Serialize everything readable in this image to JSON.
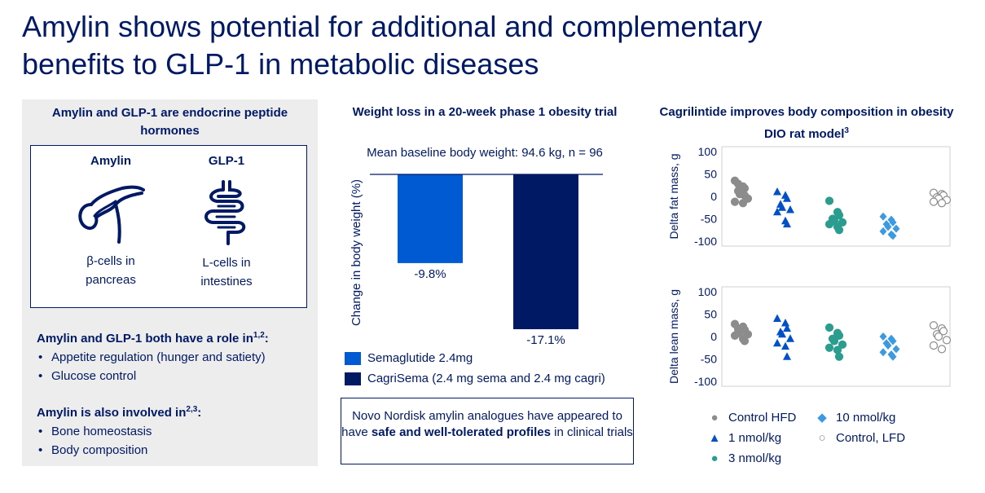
{
  "title": {
    "line1": "Amylin shows potential for additional and complementary",
    "line2": "benefits to GLP-1 in metabolic diseases"
  },
  "left": {
    "heading": "Amylin and GLP-1 are endocrine peptide hormones",
    "amylin": {
      "name": "Amylin",
      "cells1": "β-cells in",
      "cells2": "pancreas",
      "icon": "pancreas-icon"
    },
    "glp1": {
      "name": "GLP-1",
      "cells1": "L-cells in",
      "cells2": "intestines",
      "icon": "intestines-icon"
    },
    "roles_heading": "Amylin and GLP-1 both have a role in",
    "roles_sup": "1,2",
    "roles_colon": ":",
    "roles": [
      "Appetite regulation (hunger and satiety)",
      "Glucose control"
    ],
    "also_heading": "Amylin is also involved in",
    "also_sup": "2,3",
    "also_colon": ":",
    "also": [
      "Bone homeostasis",
      "Body composition"
    ]
  },
  "middle": {
    "heading": "Weight loss in a 20-week phase 1 obesity trial",
    "subtitle": "Mean baseline body weight: 94.6 kg, n = 96",
    "legend": [
      {
        "label": "Semaglutide 2.4mg",
        "color": "#005ad2"
      },
      {
        "label": "CagriSema (2.4 mg sema and 2.4 mg cagri)",
        "color": "#001965"
      }
    ],
    "callout": {
      "pre": "Novo Nordisk amylin analogues have appeared to have ",
      "bold": "safe and well-tolerated profiles",
      "post": " in clinical trials"
    }
  },
  "right": {
    "heading": "Cagrilintide improves body composition in obesity DIO rat model",
    "heading_sup": "3",
    "legend": [
      {
        "label": "Control HFD",
        "marker": "●",
        "color": "#8c8c8c"
      },
      {
        "label": "10 nmol/kg",
        "marker": "◆",
        "color": "#3b9ae1"
      },
      {
        "label": "1 nmol/kg",
        "marker": "▲",
        "color": "#0050c8"
      },
      {
        "label": "Control, LFD",
        "marker": "○",
        "color": "#8c8c8c"
      },
      {
        "label": "3 nmol/kg",
        "marker": "●",
        "color": "#2a9d8f"
      }
    ]
  },
  "chart_data": [
    {
      "type": "bar",
      "title": "Weight loss in a 20-week phase 1 obesity trial",
      "ylabel": "Change in body weight (%)",
      "categories": [
        "Semaglutide 2.4mg",
        "CagriSema (2.4 mg sema and 2.4 mg cagri)"
      ],
      "values": [
        -9.8,
        -17.1
      ],
      "data_labels": [
        "-9.8%",
        "-17.1%"
      ],
      "colors": [
        "#005ad2",
        "#001965"
      ],
      "ylim": [
        -17.1,
        0
      ]
    },
    {
      "type": "scatter",
      "ylabel": "Delta fat mass, g",
      "ylim": [
        -100,
        100
      ],
      "yticks": [
        100,
        50,
        0,
        -50,
        -100
      ],
      "grid": false,
      "groups": [
        {
          "name": "Control HFD",
          "marker": "circle",
          "color": "#8c8c8c",
          "filled": true,
          "values": [
            35,
            22,
            18,
            12,
            5,
            -5,
            -12,
            -15,
            2,
            28
          ]
        },
        {
          "name": "1 nmol/kg",
          "marker": "triangle",
          "color": "#0050c8",
          "filled": true,
          "values": [
            10,
            2,
            -5,
            -18,
            -25,
            -30,
            -35,
            -55,
            -62
          ]
        },
        {
          "name": "3 nmol/kg",
          "marker": "circle",
          "color": "#2a9d8f",
          "filled": true,
          "values": [
            -10,
            -35,
            -42,
            -50,
            -55,
            -58,
            -62,
            -68,
            -75
          ]
        },
        {
          "name": "10 nmol/kg",
          "marker": "diamond",
          "color": "#3b9ae1",
          "filled": true,
          "values": [
            -45,
            -52,
            -58,
            -62,
            -68,
            -72,
            -78,
            -85,
            -88
          ]
        },
        {
          "name": "Control, LFD",
          "marker": "circle",
          "color": "#8c8c8c",
          "filled": false,
          "values": [
            8,
            5,
            2,
            -2,
            -5,
            -8,
            -12,
            -15
          ]
        }
      ]
    },
    {
      "type": "scatter",
      "ylabel": "Delta lean mass, g",
      "ylim": [
        -100,
        100
      ],
      "yticks": [
        100,
        50,
        0,
        -50,
        -100
      ],
      "grid": false,
      "groups": [
        {
          "name": "Control HFD",
          "marker": "circle",
          "color": "#8c8c8c",
          "filled": true,
          "values": [
            28,
            22,
            15,
            10,
            8,
            5,
            2,
            -5,
            -10,
            18
          ]
        },
        {
          "name": "1 nmol/kg",
          "marker": "triangle",
          "color": "#0050c8",
          "filled": true,
          "values": [
            40,
            30,
            18,
            10,
            5,
            -5,
            -15,
            -22,
            -45
          ]
        },
        {
          "name": "3 nmol/kg",
          "marker": "circle",
          "color": "#2a9d8f",
          "filled": true,
          "values": [
            20,
            8,
            2,
            -5,
            -10,
            -18,
            -25,
            -30,
            -45
          ]
        },
        {
          "name": "10 nmol/kg",
          "marker": "diamond",
          "color": "#3b9ae1",
          "filled": true,
          "values": [
            0,
            -5,
            -10,
            -15,
            -20,
            -28,
            -35,
            -40,
            -45
          ]
        },
        {
          "name": "Control, LFD",
          "marker": "circle",
          "color": "#8c8c8c",
          "filled": false,
          "values": [
            25,
            18,
            12,
            5,
            0,
            -8,
            -20,
            -28
          ]
        }
      ]
    }
  ]
}
